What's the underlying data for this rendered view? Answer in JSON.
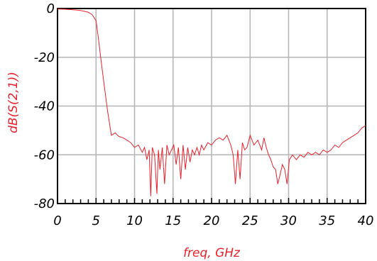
{
  "chart_data": {
    "type": "line",
    "xlabel": "freq, GHz",
    "ylabel": "dB(S(2,1))",
    "xlim": [
      0,
      40
    ],
    "ylim": [
      -80,
      0
    ],
    "x_ticks": [
      0,
      5,
      10,
      15,
      20,
      25,
      30,
      35,
      40
    ],
    "y_ticks": [
      0,
      -20,
      -40,
      -60,
      -80
    ],
    "grid": true,
    "line_color": "#e8202a",
    "series": [
      {
        "x": [
          0,
          1,
          2,
          3,
          4,
          4.5,
          5,
          5.3,
          5.6,
          6,
          6.5,
          7,
          7.5,
          7.8,
          8,
          8.5,
          9,
          9.5,
          10,
          10.5,
          11,
          11.3,
          11.6,
          11.9,
          12.1,
          12.3,
          12.6,
          12.9,
          13.1,
          13.3,
          13.6,
          13.9,
          14.2,
          14.5,
          14.8,
          15.1,
          15.4,
          15.7,
          16,
          16.3,
          16.6,
          16.9,
          17.2,
          17.5,
          17.8,
          18.1,
          18.4,
          18.7,
          19,
          19.5,
          20,
          20.5,
          21,
          21.5,
          22,
          22.5,
          22.8,
          23.1,
          23.4,
          23.7,
          24,
          24.3,
          24.6,
          25,
          25.5,
          26,
          26.5,
          26.8,
          27.1,
          27.4,
          27.7,
          28,
          28.3,
          28.6,
          28.9,
          29.2,
          29.5,
          29.8,
          30.1,
          30.5,
          31,
          31.5,
          32,
          32.5,
          33,
          33.5,
          34,
          34.5,
          35,
          35.5,
          36,
          36.5,
          37,
          37.5,
          38,
          38.5,
          39,
          39.5,
          40
        ],
        "y": [
          -0.2,
          -0.3,
          -0.5,
          -0.8,
          -1.5,
          -2.5,
          -5,
          -12,
          -20,
          -30,
          -42,
          -52,
          -51,
          -52,
          -52.5,
          -53,
          -54,
          -55,
          -57,
          -56,
          -59,
          -57,
          -62,
          -58,
          -77,
          -57,
          -60,
          -76,
          -58,
          -66,
          -57,
          -72,
          -56,
          -60,
          -58,
          -56,
          -64,
          -57,
          -70,
          -56,
          -66,
          -57,
          -63,
          -58,
          -60,
          -57,
          -60,
          -56,
          -58,
          -55,
          -56,
          -54,
          -53,
          -54,
          -52,
          -56,
          -60,
          -72,
          -58,
          -70,
          -55,
          -58,
          -57,
          -52,
          -56,
          -54,
          -58,
          -53,
          -57,
          -60,
          -62,
          -65,
          -66,
          -72,
          -68,
          -64,
          -66,
          -72,
          -62,
          -60,
          -62,
          -60,
          -61,
          -59,
          -60,
          -59,
          -60,
          -58,
          -59,
          -58,
          -56,
          -57,
          -55,
          -54,
          -53,
          -52,
          -51,
          -49,
          -48
        ]
      }
    ]
  }
}
